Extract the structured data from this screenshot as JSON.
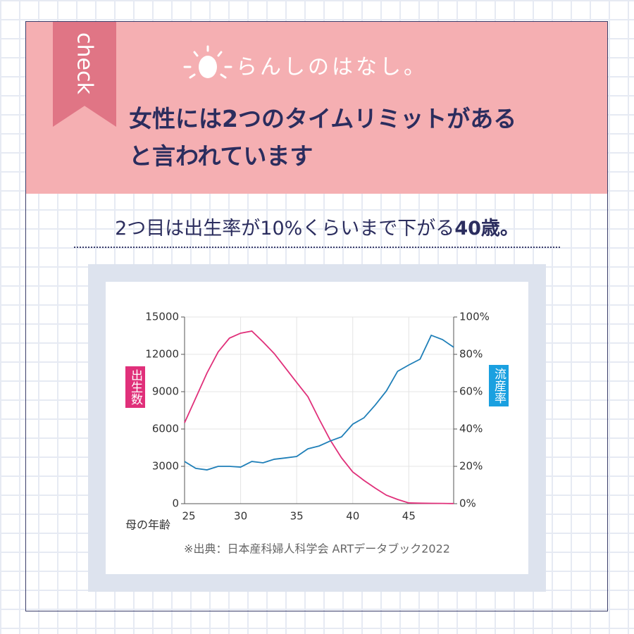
{
  "header": {
    "badge": "check",
    "series_name": "らんしのはなし。",
    "title": [
      "女性には2つのタイムリミットがある",
      "と言われています"
    ]
  },
  "subtitle": [
    "2つ目は出生率が10%くらいまで下がる",
    "40歳。"
  ],
  "chart_data": {
    "type": "line",
    "x_label": "母の年齢",
    "y_label": "出生数",
    "y2_label": "流産率",
    "source": "※出典：日本産科婦人科学会 ARTデータブック2022",
    "x": [
      25,
      26,
      27,
      28,
      29,
      30,
      31,
      32,
      33,
      34,
      35,
      36,
      37,
      38,
      39,
      40,
      41,
      42,
      43,
      44,
      45,
      46,
      47,
      48,
      49
    ],
    "series": [
      {
        "name": "出生数",
        "color": "#e0307a",
        "axis": "y",
        "values": [
          6500,
          8500,
          10500,
          12200,
          13300,
          13700,
          13870,
          13000,
          12060,
          10900,
          9740,
          8600,
          6800,
          5100,
          3680,
          2550,
          1870,
          1250,
          680,
          340,
          60,
          40,
          30,
          20,
          10
        ]
      },
      {
        "name": "流産率",
        "color": "#1f7fb8",
        "axis": "y2",
        "values": [
          22.6,
          18.9,
          18.1,
          20,
          20,
          19.6,
          22.6,
          21.9,
          23.8,
          24.5,
          25.3,
          29.4,
          30.9,
          33.6,
          35.8,
          42.6,
          46,
          52.8,
          60.4,
          70.9,
          74.3,
          77.4,
          90.2,
          87.9,
          83.8
        ]
      }
    ],
    "xlim": [
      25,
      49
    ],
    "xticks": [
      25,
      30,
      35,
      40,
      45
    ],
    "ylim": [
      0,
      15000
    ],
    "yticks": [
      0,
      3000,
      6000,
      9000,
      12000,
      15000
    ],
    "y2lim": [
      0,
      100
    ],
    "y2ticks": [
      {
        "value": 0,
        "label": "0%"
      },
      {
        "value": 20,
        "label": "20%"
      },
      {
        "value": 40,
        "label": "40%"
      },
      {
        "value": 60,
        "label": "60%"
      },
      {
        "value": 80,
        "label": "80%"
      },
      {
        "value": 100,
        "label": "100%"
      }
    ],
    "grid": true
  }
}
